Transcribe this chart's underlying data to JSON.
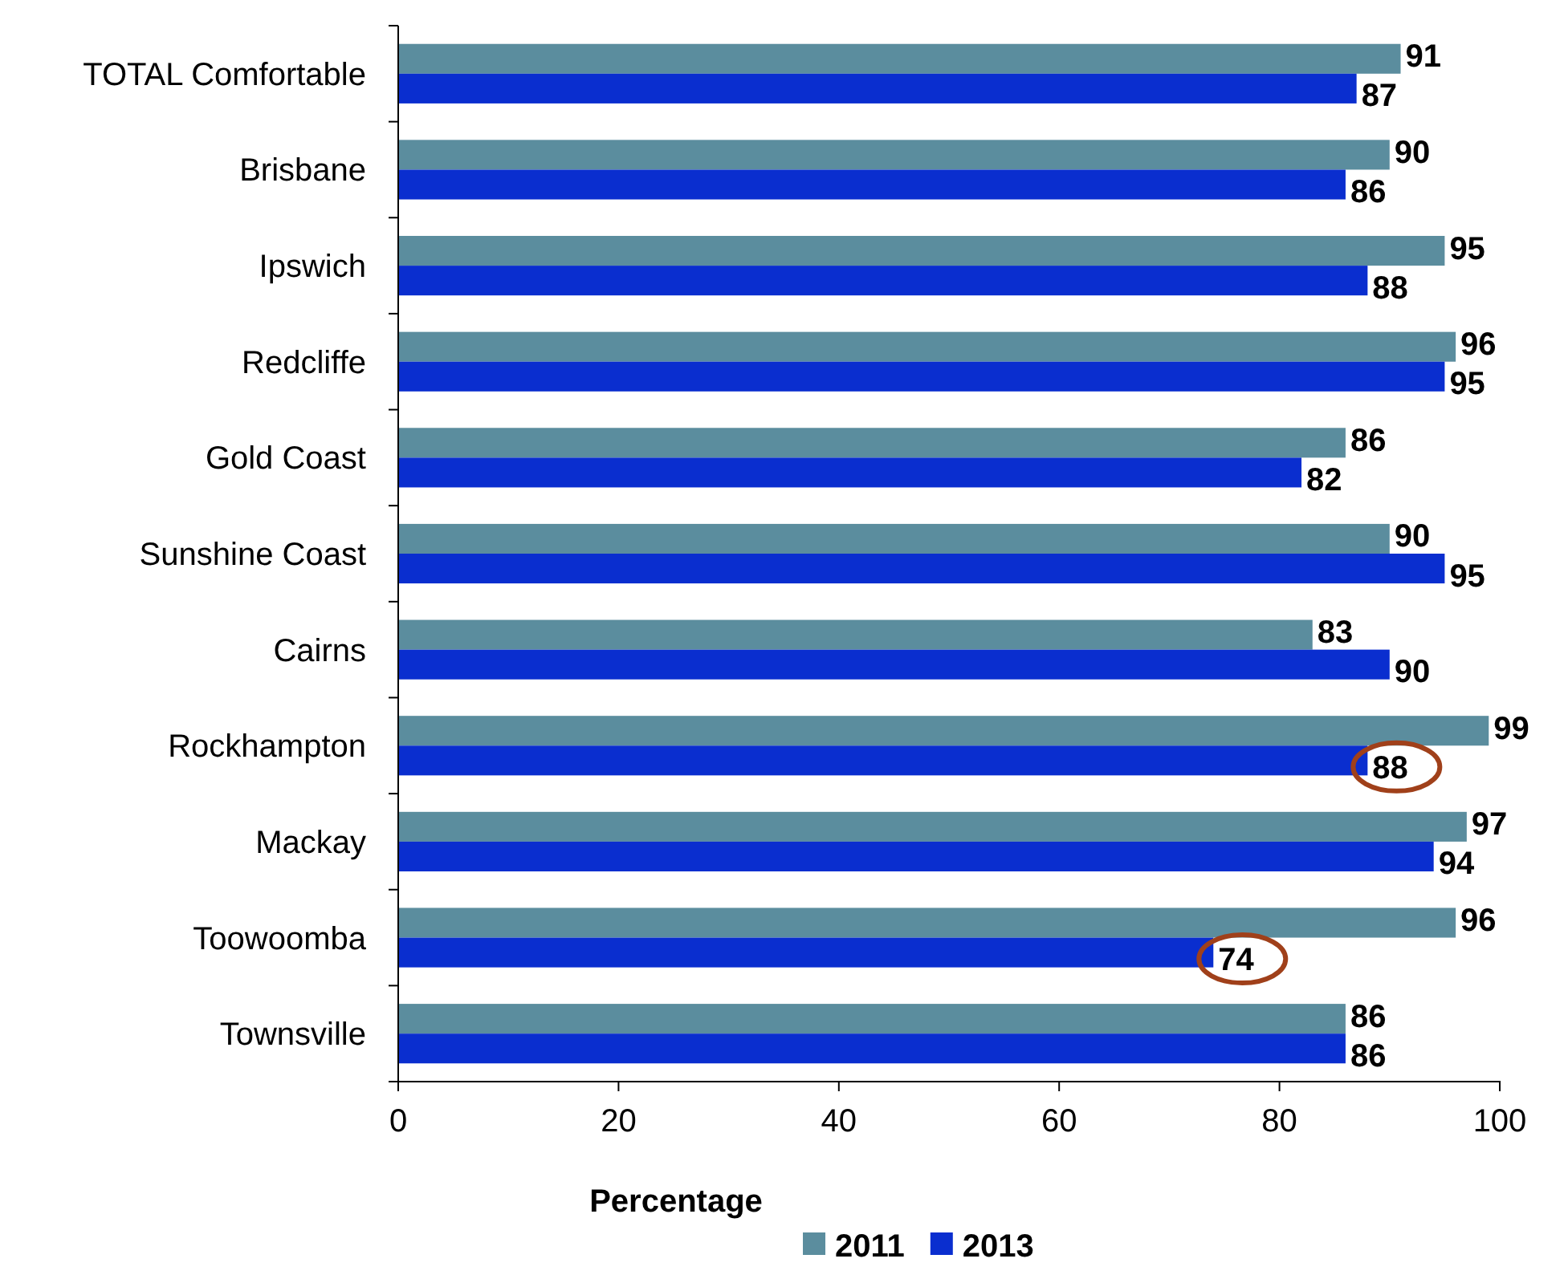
{
  "chart_data": {
    "type": "bar",
    "orientation": "horizontal",
    "xlabel": "Percentage",
    "categories": [
      "TOTAL Comfortable",
      "Brisbane",
      "Ipswich",
      "Redcliffe",
      "Gold Coast",
      "Sunshine Coast",
      "Cairns",
      "Rockhampton",
      "Mackay",
      "Toowoomba",
      "Townsville"
    ],
    "series": [
      {
        "name": "2011",
        "color": "#5b8d9e",
        "values": [
          91,
          90,
          95,
          96,
          86,
          90,
          83,
          99,
          97,
          96,
          86
        ]
      },
      {
        "name": "2013",
        "color": "#0a2ecf",
        "values": [
          87,
          86,
          88,
          95,
          82,
          95,
          90,
          88,
          94,
          74,
          86
        ]
      }
    ],
    "xlim": [
      0,
      100
    ],
    "xticks": [
      0,
      20,
      40,
      60,
      80,
      100
    ],
    "data_labels": true,
    "legend": "bottom",
    "grid": false
  }
}
